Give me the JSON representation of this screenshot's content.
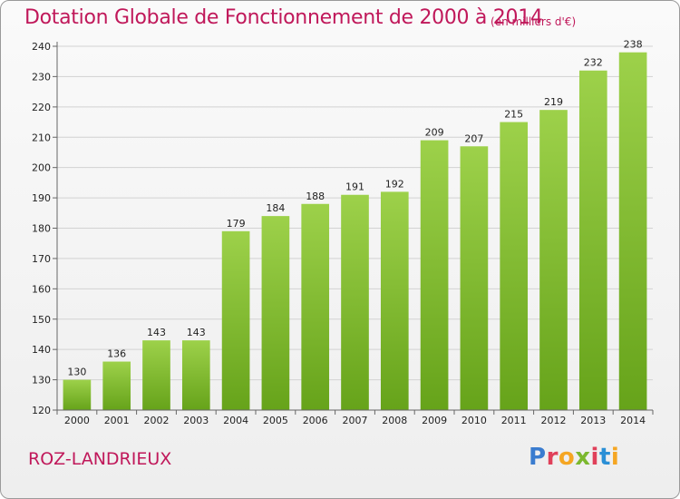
{
  "header": {
    "title": "Dotation Globale de Fonctionnement de 2000 à 2014",
    "subtitle": "(en milliers d'€)"
  },
  "footer": {
    "commune": "ROZ-LANDRIEUX",
    "brand": "Proxiti",
    "brand_colors": [
      "#3a7ccf",
      "#e0405a",
      "#f5a623",
      "#7cb82f",
      "#e0405a",
      "#2a8fd6",
      "#f5a623"
    ]
  },
  "chart_data": {
    "type": "bar",
    "categories": [
      "2000",
      "2001",
      "2002",
      "2003",
      "2004",
      "2005",
      "2006",
      "2007",
      "2008",
      "2009",
      "2010",
      "2011",
      "2012",
      "2013",
      "2014"
    ],
    "values": [
      130,
      136,
      143,
      143,
      179,
      184,
      188,
      191,
      192,
      209,
      207,
      215,
      219,
      232,
      238
    ],
    "title": "Dotation Globale de Fonctionnement de 2000 à 2014",
    "subtitle": "(en milliers d'€)",
    "xlabel": "",
    "ylabel": "",
    "ylim": [
      120,
      240
    ],
    "yticks": [
      120,
      130,
      140,
      150,
      160,
      170,
      180,
      190,
      200,
      210,
      220,
      230,
      240
    ],
    "grid": true,
    "bar_color": "#8cc63f",
    "bar_color_dark": "#6aa61e"
  }
}
